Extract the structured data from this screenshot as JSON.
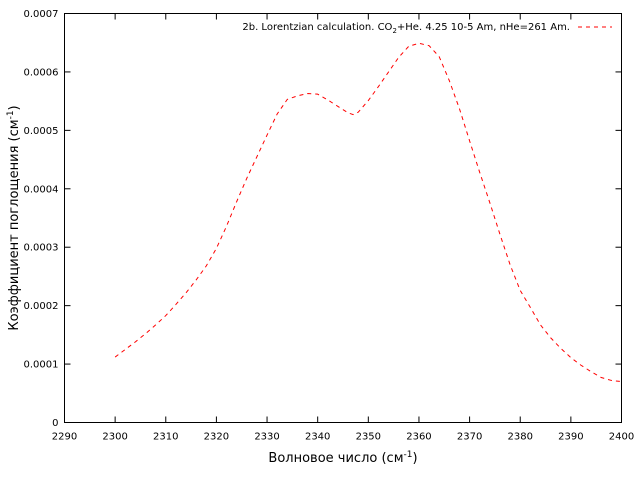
{
  "chart_data": {
    "type": "line",
    "xlabel": {
      "base": "Волновое число (см",
      "sup": "-1",
      "close": ")"
    },
    "ylabel": {
      "base": "Коэффициент поглощения (см",
      "sup": "-1",
      "close": ")"
    },
    "xlim": [
      2290,
      2400
    ],
    "ylim": [
      0,
      0.0007
    ],
    "x_ticks": [
      "2290",
      "2300",
      "2310",
      "2320",
      "2330",
      "2340",
      "2350",
      "2360",
      "2370",
      "2380",
      "2390",
      "2400"
    ],
    "y_ticks": [
      "0",
      "0.0001",
      "0.0002",
      "0.0003",
      "0.0004",
      "0.0005",
      "0.0006",
      "0.0007"
    ],
    "grid": false,
    "legend_position": "top-right",
    "series": [
      {
        "name": "2b. Lorentzian calculation. CO2+He. 4.25 10-5 Am, nHe=261 Am.",
        "name_parts": {
          "a": "2b. Lorentzian calculation. CO",
          "sub": "2",
          "b": "+He. 4.25 10-5 Am, nHe=261 Am."
        },
        "color": "#ff0000",
        "style": "dashed",
        "x": [
          2300,
          2302,
          2304,
          2306,
          2308,
          2310,
          2312,
          2314,
          2316,
          2318,
          2320,
          2322,
          2324,
          2326,
          2328,
          2330,
          2332,
          2334,
          2336,
          2338,
          2340,
          2342,
          2344,
          2346,
          2347,
          2348,
          2350,
          2352,
          2354,
          2356,
          2358,
          2360,
          2362,
          2364,
          2366,
          2368,
          2370,
          2372,
          2374,
          2376,
          2378,
          2380,
          2382,
          2384,
          2386,
          2388,
          2390,
          2392,
          2394,
          2396,
          2398,
          2400
        ],
        "y": [
          0.000112,
          0.000125,
          0.000138,
          0.000152,
          0.000167,
          0.000183,
          0.000202,
          0.000222,
          0.000244,
          0.000268,
          0.000298,
          0.000336,
          0.000378,
          0.000418,
          0.000455,
          0.000492,
          0.000528,
          0.000553,
          0.000559,
          0.000563,
          0.000562,
          0.000552,
          0.000541,
          0.00053,
          0.000527,
          0.000531,
          0.000551,
          0.000575,
          0.0006,
          0.000625,
          0.000644,
          0.000649,
          0.000645,
          0.000626,
          0.000585,
          0.000537,
          0.000482,
          0.000428,
          0.000376,
          0.000322,
          0.00027,
          0.000226,
          0.000197,
          0.000167,
          0.000145,
          0.000127,
          0.000111,
          9.8e-05,
          8.7e-05,
          7.7e-05,
          7.2e-05,
          7e-05
        ]
      }
    ]
  }
}
